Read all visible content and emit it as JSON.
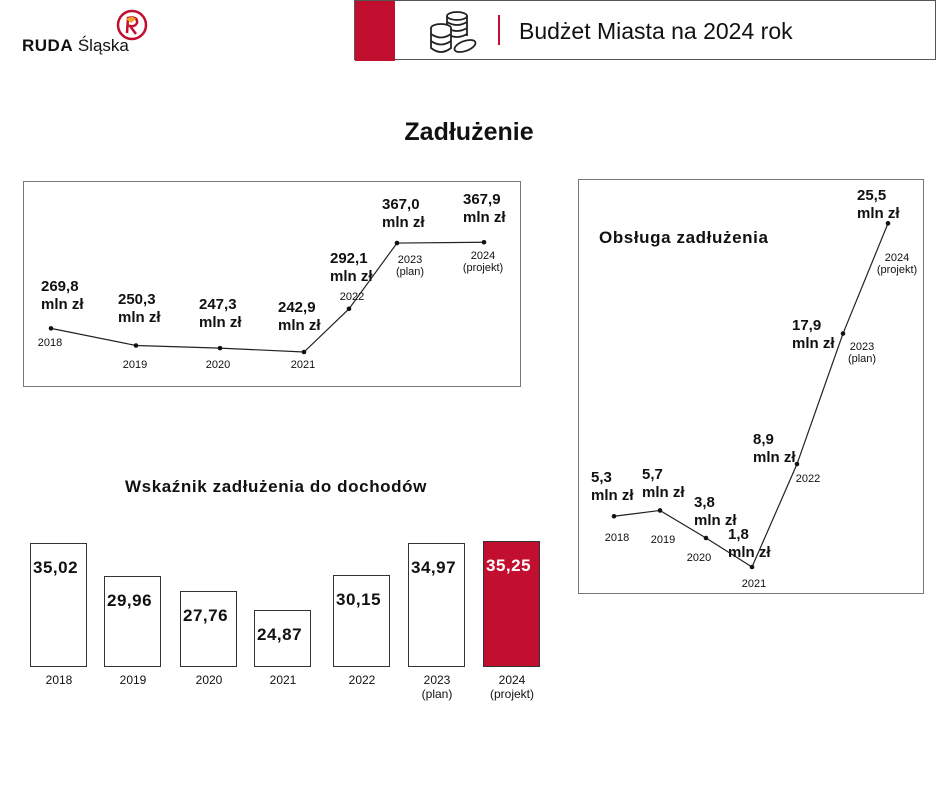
{
  "logo": {
    "bold": "RUDA",
    "rest": "Śląska"
  },
  "banner": {
    "title": "Budżet Miasta na 2024 rok",
    "icon": "coins-icon"
  },
  "page_title": "Zadłużenie",
  "colors": {
    "accent": "#c20e2f"
  },
  "chart_data": [
    {
      "type": "line",
      "title": "",
      "categories": [
        "2018",
        "2019",
        "2020",
        "2021",
        "2022",
        "2023 (plan)",
        "2024 (projekt)"
      ],
      "years": [
        "2018",
        "2019",
        "2020",
        "2021",
        "2022",
        "2023",
        "2024"
      ],
      "year_notes": [
        "",
        "",
        "",
        "",
        "",
        "(plan)",
        "(projekt)"
      ],
      "values": [
        269.8,
        250.3,
        247.3,
        242.9,
        292.1,
        367.0,
        367.9
      ],
      "labels": [
        "269,8",
        "250,3",
        "247,3",
        "242,9",
        "292,1",
        "367,0",
        "367,9"
      ],
      "unit": "mln zł"
    },
    {
      "type": "line",
      "title": "Obsługa zadłużenia",
      "categories": [
        "2018",
        "2019",
        "2020",
        "2021",
        "2022",
        "2023 (plan)",
        "2024 (projekt)"
      ],
      "years": [
        "2018",
        "2019",
        "2020",
        "2021",
        "2022",
        "2023",
        "2024"
      ],
      "year_notes": [
        "",
        "",
        "",
        "",
        "",
        "(plan)",
        "(projekt)"
      ],
      "values": [
        5.3,
        5.7,
        3.8,
        1.8,
        8.9,
        17.9,
        25.5
      ],
      "labels": [
        "5,3",
        "5,7",
        "3,8",
        "1,8",
        "8,9",
        "17,9",
        "25,5"
      ],
      "unit": "mln zł"
    },
    {
      "type": "bar",
      "title": "Wskaźnik zadłużenia do dochodów",
      "categories": [
        "2018",
        "2019",
        "2020",
        "2021",
        "2022",
        "2023 (plan)",
        "2024 (projekt)"
      ],
      "years": [
        "2018",
        "2019",
        "2020",
        "2021",
        "2022",
        "2023",
        "2024"
      ],
      "year_notes": [
        "",
        "",
        "",
        "",
        "",
        "(plan)",
        "(projekt)"
      ],
      "values": [
        35.02,
        29.96,
        27.76,
        24.87,
        30.15,
        34.97,
        35.25
      ],
      "labels": [
        "35,02",
        "29,96",
        "27,76",
        "24,87",
        "30,15",
        "34,97",
        "35,25"
      ],
      "highlight_index": 6
    }
  ]
}
